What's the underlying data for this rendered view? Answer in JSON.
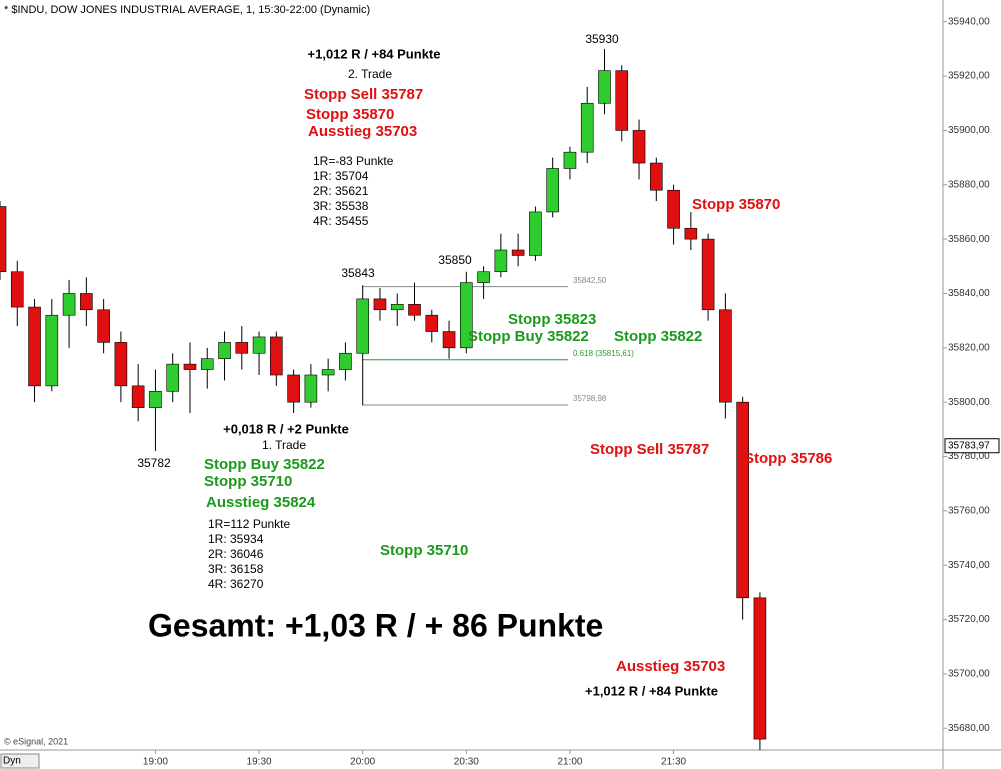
{
  "chart_data": {
    "type": "candlestick",
    "title": "* $INDU, DOW JONES INDUSTRIAL AVERAGE, 1, 15:30-22:00 (Dynamic)",
    "footer": "© eSignal, 2021",
    "mode_button": "Dyn",
    "up_color": "#2ecc2e",
    "down_color": "#e01010",
    "x": [
      1095,
      1100,
      1105,
      1110,
      1115,
      1120,
      1125,
      1130,
      1135,
      1140,
      1145,
      1150,
      1155,
      1160,
      1165,
      1170,
      1175,
      1180,
      1185,
      1190,
      1195,
      1200,
      1205,
      1210,
      1215,
      1220,
      1225,
      1230,
      1235,
      1240,
      1245,
      1250,
      1255,
      1260,
      1265,
      1270,
      1275,
      1280,
      1285,
      1290,
      1295,
      1300,
      1305,
      1310,
      1315
    ],
    "open": [
      35872,
      35848,
      35835,
      35806,
      35832,
      35840,
      35834,
      35822,
      35806,
      35798,
      35804,
      35814,
      35812,
      35816,
      35822,
      35818,
      35824,
      35810,
      35800,
      35810,
      35812,
      35818,
      35838,
      35834,
      35836,
      35832,
      35826,
      35820,
      35844,
      35848,
      35856,
      35854,
      35870,
      35886,
      35892,
      35910,
      35922,
      35900,
      35888,
      35878,
      35864,
      35860,
      35834,
      35800,
      35728
    ],
    "high": [
      35874,
      35852,
      35838,
      35838,
      35845,
      35846,
      35838,
      35826,
      35814,
      35812,
      35818,
      35822,
      35820,
      35826,
      35828,
      35826,
      35826,
      35812,
      35814,
      35816,
      35822,
      35843,
      35842,
      35840,
      35844,
      35834,
      35830,
      35848,
      35850,
      35862,
      35862,
      35872,
      35890,
      35894,
      35916,
      35930,
      35924,
      35904,
      35890,
      35880,
      35870,
      35862,
      35840,
      35802,
      35730
    ],
    "low": [
      35845,
      35828,
      35800,
      35804,
      35820,
      35828,
      35818,
      35800,
      35793,
      35782,
      35800,
      35796,
      35805,
      35808,
      35812,
      35810,
      35806,
      35796,
      35798,
      35804,
      35808,
      35799,
      35830,
      35828,
      35830,
      35822,
      35816,
      35818,
      35838,
      35846,
      35850,
      35852,
      35868,
      35882,
      35888,
      35906,
      35896,
      35882,
      35874,
      35858,
      35856,
      35830,
      35794,
      35720,
      35672
    ],
    "close": [
      35848,
      35835,
      35806,
      35832,
      35840,
      35834,
      35822,
      35806,
      35798,
      35804,
      35814,
      35812,
      35816,
      35822,
      35818,
      35824,
      35810,
      35800,
      35810,
      35812,
      35818,
      35838,
      35834,
      35836,
      35832,
      35826,
      35820,
      35844,
      35848,
      35856,
      35854,
      35870,
      35886,
      35892,
      35910,
      35922,
      35900,
      35888,
      35878,
      35864,
      35860,
      35834,
      35800,
      35728,
      35676
    ],
    "xlim": [
      1095,
      1368
    ],
    "ylim": [
      35672,
      35948
    ],
    "xticks": [
      {
        "value": 1140,
        "label": "19:00"
      },
      {
        "value": 1170,
        "label": "19:30"
      },
      {
        "value": 1200,
        "label": "20:00"
      },
      {
        "value": 1230,
        "label": "20:30"
      },
      {
        "value": 1260,
        "label": "21:00"
      },
      {
        "value": 1290,
        "label": "21:30"
      }
    ],
    "yticks": [
      {
        "value": 35680,
        "label": "35680,00"
      },
      {
        "value": 35700,
        "label": "35700,00"
      },
      {
        "value": 35720,
        "label": "35720,00"
      },
      {
        "value": 35740,
        "label": "35740,00"
      },
      {
        "value": 35760,
        "label": "35760,00"
      },
      {
        "value": 35780,
        "label": "35780,00"
      },
      {
        "value": 35800,
        "label": "35800,00"
      },
      {
        "value": 35820,
        "label": "35820,00"
      },
      {
        "value": 35840,
        "label": "35840,00"
      },
      {
        "value": 35860,
        "label": "35860,00"
      },
      {
        "value": 35880,
        "label": "35880,00"
      },
      {
        "value": 35900,
        "label": "35900,00"
      },
      {
        "value": 35920,
        "label": "35920,00"
      },
      {
        "value": 35940,
        "label": "35940,00"
      }
    ],
    "last_price": {
      "value": 35783.97,
      "label": "35783,97"
    },
    "levels": [
      {
        "value": 35842.5,
        "label": "35842,50",
        "color": "#888888"
      },
      {
        "value": 35815.61,
        "label": "0.618 (35815,61)",
        "color": "#2a9d2a"
      },
      {
        "value": 35798.98,
        "label": "35798,98",
        "color": "#888888"
      }
    ],
    "annotations": [
      {
        "text": "35930",
        "color": "#000000",
        "bold": false
      },
      {
        "text": "+1,012 R / +84 Punkte",
        "color": "#000000",
        "bold": true
      },
      {
        "text": "2. Trade",
        "color": "#000000",
        "bold": false
      },
      {
        "text": "Stopp Sell 35787",
        "color": "#e01010",
        "bold": true
      },
      {
        "text": "Stopp 35870",
        "color": "#e01010",
        "bold": true
      },
      {
        "text": "Ausstieg 35703",
        "color": "#e01010",
        "bold": true
      },
      {
        "text": "1R=-83 Punkte",
        "color": "#000000",
        "bold": false
      },
      {
        "text": "1R: 35704",
        "color": "#000000",
        "bold": false
      },
      {
        "text": "2R: 35621",
        "color": "#000000",
        "bold": false
      },
      {
        "text": "3R: 35538",
        "color": "#000000",
        "bold": false
      },
      {
        "text": "4R: 35455",
        "color": "#000000",
        "bold": false
      },
      {
        "text": "35843",
        "color": "#000000",
        "bold": false
      },
      {
        "text": "35850",
        "color": "#000000",
        "bold": false
      },
      {
        "text": "Stopp 35870",
        "color": "#e01010",
        "bold": true
      },
      {
        "text": "Stopp 35823",
        "color": "#1a9a1a",
        "bold": true
      },
      {
        "text": "Stopp Buy 35822",
        "color": "#1a9a1a",
        "bold": true
      },
      {
        "text": "Stopp 35822",
        "color": "#1a9a1a",
        "bold": true
      },
      {
        "text": "+0,018 R / +2 Punkte",
        "color": "#000000",
        "bold": true
      },
      {
        "text": "1. Trade",
        "color": "#000000",
        "bold": false
      },
      {
        "text": "35782",
        "color": "#000000",
        "bold": false
      },
      {
        "text": "Stopp Buy 35822",
        "color": "#1a9a1a",
        "bold": true
      },
      {
        "text": "Stopp 35710",
        "color": "#1a9a1a",
        "bold": true
      },
      {
        "text": "Ausstieg 35824",
        "color": "#1a9a1a",
        "bold": true
      },
      {
        "text": "1R=112 Punkte",
        "color": "#000000",
        "bold": false
      },
      {
        "text": "1R: 35934",
        "color": "#000000",
        "bold": false
      },
      {
        "text": "2R: 36046",
        "color": "#000000",
        "bold": false
      },
      {
        "text": "3R: 36158",
        "color": "#000000",
        "bold": false
      },
      {
        "text": "4R: 36270",
        "color": "#000000",
        "bold": false
      },
      {
        "text": "Stopp 35710",
        "color": "#1a9a1a",
        "bold": true
      },
      {
        "text": "Gesamt: +1,03 R / + 86 Punkte",
        "color": "#000000",
        "bold": true
      },
      {
        "text": "Stopp Sell 35787",
        "color": "#e01010",
        "bold": true
      },
      {
        "text": "Stopp 35786",
        "color": "#e01010",
        "bold": true
      },
      {
        "text": "Ausstieg 35703",
        "color": "#e01010",
        "bold": true
      },
      {
        "text": "+1,012 R / +84 Punkte",
        "color": "#000000",
        "bold": true
      }
    ]
  }
}
